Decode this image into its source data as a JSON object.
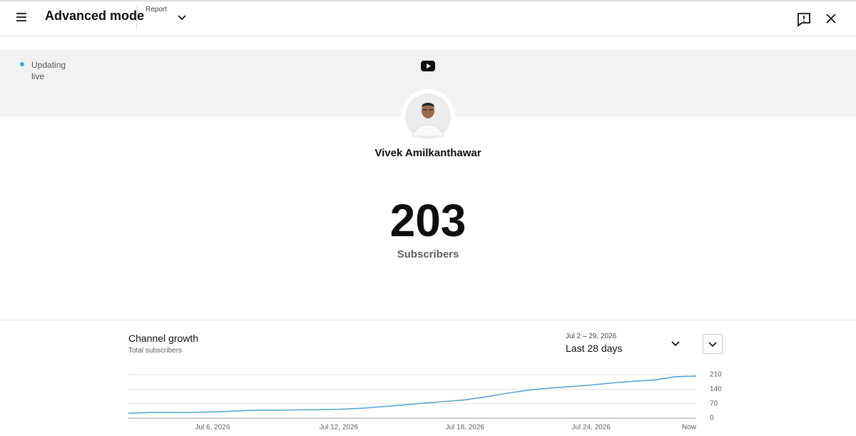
{
  "header": {
    "title": "Advanced mode",
    "report_label": "Report"
  },
  "status": {
    "text": "Updating live"
  },
  "channel": {
    "name": "Vivek Amilkanthawar",
    "subscriber_count": 203,
    "subscriber_label": "Subscribers"
  },
  "chart_data": {
    "type": "line",
    "title": "Channel growth",
    "subtitle": "Total subscribers",
    "date_range": "Jul 2 – 29, 2026",
    "period": "Last 28 days",
    "categories": [
      null,
      null,
      null,
      null,
      "Jul 6, 2026",
      null,
      null,
      null,
      null,
      null,
      "Jul 12, 2026",
      null,
      null,
      null,
      null,
      null,
      "Jul 18, 2026",
      null,
      null,
      null,
      null,
      null,
      "Jul 24, 2026",
      null,
      null,
      null,
      null,
      "Now"
    ],
    "values": [
      24,
      27,
      28,
      28,
      30,
      34,
      38,
      38,
      40,
      41,
      43,
      47,
      55,
      63,
      72,
      80,
      88,
      103,
      120,
      135,
      145,
      152,
      160,
      170,
      178,
      184,
      200,
      203
    ],
    "color": "#5ba4cf",
    "ylim": [
      0,
      210
    ],
    "yticks": [
      0,
      70,
      140,
      210
    ],
    "grid": true,
    "y_axis_side": "right"
  }
}
